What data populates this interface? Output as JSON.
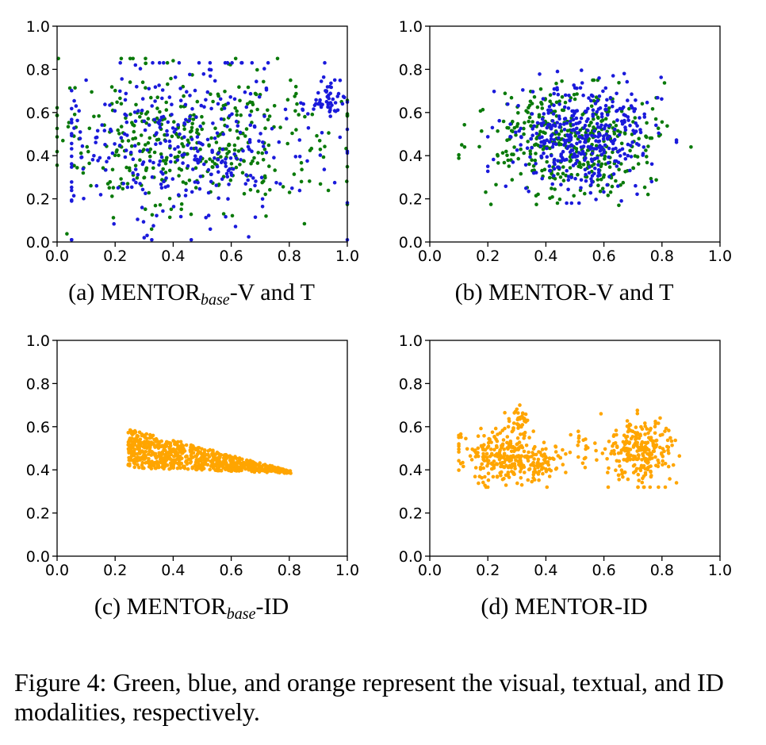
{
  "colors": {
    "visual": "#0a7a0a",
    "textual": "#1a1adb",
    "id": "#ffa500"
  },
  "chart_data": [
    {
      "type": "scatter",
      "id": "a",
      "xlim": [
        0.0,
        1.0
      ],
      "ylim": [
        0.0,
        1.0
      ],
      "xticks": [
        "0.0",
        "0.2",
        "0.4",
        "0.6",
        "0.8",
        "1.0"
      ],
      "yticks": [
        "0.0",
        "0.2",
        "0.4",
        "0.6",
        "0.8",
        "1.0"
      ],
      "caption_prefix": "(a) MENTOR",
      "caption_sub": "base",
      "caption_suffix": "-V and T",
      "series": [
        {
          "name": "visual",
          "color": "#0a7a0a",
          "n": 400,
          "seed": 11,
          "clusters": [
            {
              "cx": 0.45,
              "cy": 0.48,
              "sx": 0.25,
              "sy": 0.16,
              "w": 1
            }
          ],
          "xr": [
            0.0,
            1.0
          ],
          "yr": [
            0.02,
            0.85
          ],
          "points": [
            [
              0.02,
              0.47
            ],
            [
              0.4,
              0.84
            ],
            [
              0.38,
              0.83
            ],
            [
              0.72,
              0.12
            ],
            [
              0.98,
              0.65
            ],
            [
              0.09,
              0.32
            ]
          ]
        },
        {
          "name": "textual",
          "color": "#1a1adb",
          "n": 400,
          "seed": 23,
          "clusters": [
            {
              "cx": 0.45,
              "cy": 0.45,
              "sx": 0.25,
              "sy": 0.19,
              "w": 0.85
            },
            {
              "cx": 0.93,
              "cy": 0.64,
              "sx": 0.03,
              "sy": 0.05,
              "w": 0.15
            }
          ],
          "xr": [
            0.05,
            1.0
          ],
          "yr": [
            0.01,
            0.83
          ],
          "points": [
            [
              0.3,
              0.02
            ],
            [
              0.31,
              0.03
            ],
            [
              0.27,
              0.82
            ],
            [
              0.99,
              0.67
            ],
            [
              0.1,
              0.75
            ]
          ]
        }
      ]
    },
    {
      "type": "scatter",
      "id": "b",
      "xlim": [
        0.0,
        1.0
      ],
      "ylim": [
        0.0,
        1.0
      ],
      "xticks": [
        "0.0",
        "0.2",
        "0.4",
        "0.6",
        "0.8",
        "1.0"
      ],
      "yticks": [
        "0.0",
        "0.2",
        "0.4",
        "0.6",
        "0.8",
        "1.0"
      ],
      "caption_prefix": "(b) MENTOR-V and T",
      "caption_sub": "",
      "caption_suffix": "",
      "series": [
        {
          "name": "visual",
          "color": "#0a7a0a",
          "n": 400,
          "seed": 37,
          "clusters": [
            {
              "cx": 0.48,
              "cy": 0.46,
              "sx": 0.15,
              "sy": 0.12,
              "w": 1
            }
          ],
          "xr": [
            0.1,
            0.92
          ],
          "yr": [
            0.17,
            0.75
          ],
          "points": [
            [
              0.11,
              0.45
            ],
            [
              0.9,
              0.44
            ],
            [
              0.12,
              0.44
            ],
            [
              0.44,
              0.18
            ]
          ]
        },
        {
          "name": "textual",
          "color": "#1a1adb",
          "n": 400,
          "seed": 41,
          "clusters": [
            {
              "cx": 0.52,
              "cy": 0.48,
              "sx": 0.13,
              "sy": 0.13,
              "w": 1
            }
          ],
          "xr": [
            0.2,
            0.85
          ],
          "yr": [
            0.18,
            0.8
          ],
          "points": [
            [
              0.44,
              0.79
            ],
            [
              0.66,
              0.19
            ],
            [
              0.67,
              0.78
            ]
          ]
        }
      ]
    },
    {
      "type": "scatter",
      "id": "c",
      "xlim": [
        0.0,
        1.0
      ],
      "ylim": [
        0.0,
        1.0
      ],
      "xticks": [
        "0.0",
        "0.2",
        "0.4",
        "0.6",
        "0.8",
        "1.0"
      ],
      "yticks": [
        "0.0",
        "0.2",
        "0.4",
        "0.6",
        "0.8",
        "1.0"
      ],
      "caption_prefix": "(c) MENTOR",
      "caption_sub": "base",
      "caption_suffix": "-ID",
      "series": [
        {
          "name": "ID",
          "color": "#ffa500",
          "n": 750,
          "seed": 53,
          "shape": "wedge",
          "points": [
            [
              0.8,
              0.39
            ],
            [
              0.79,
              0.39
            ],
            [
              0.78,
              0.39
            ]
          ]
        }
      ]
    },
    {
      "type": "scatter",
      "id": "d",
      "xlim": [
        0.0,
        1.0
      ],
      "ylim": [
        0.0,
        1.0
      ],
      "xticks": [
        "0.0",
        "0.2",
        "0.4",
        "0.6",
        "0.8",
        "1.0"
      ],
      "yticks": [
        "0.0",
        "0.2",
        "0.4",
        "0.6",
        "0.8",
        "1.0"
      ],
      "caption_prefix": "(d) MENTOR-ID",
      "caption_sub": "",
      "caption_suffix": "",
      "series": [
        {
          "name": "ID",
          "color": "#ffa500",
          "n": 620,
          "seed": 67,
          "clusters": [
            {
              "cx": 0.25,
              "cy": 0.46,
              "sx": 0.07,
              "sy": 0.06,
              "w": 0.4
            },
            {
              "cx": 0.31,
              "cy": 0.62,
              "sx": 0.02,
              "sy": 0.04,
              "w": 0.06
            },
            {
              "cx": 0.4,
              "cy": 0.42,
              "sx": 0.05,
              "sy": 0.04,
              "w": 0.08
            },
            {
              "cx": 0.72,
              "cy": 0.48,
              "sx": 0.06,
              "sy": 0.07,
              "w": 0.43
            },
            {
              "cx": 0.52,
              "cy": 0.5,
              "sx": 0.02,
              "sy": 0.04,
              "w": 0.03
            }
          ],
          "xr": [
            0.1,
            0.86
          ],
          "yr": [
            0.32,
            0.71
          ],
          "points": [
            [
              0.1,
              0.52
            ],
            [
              0.31,
              0.7
            ],
            [
              0.85,
              0.34
            ],
            [
              0.59,
              0.66
            ],
            [
              0.67,
              0.56
            ]
          ]
        }
      ]
    }
  ],
  "figure_caption": "Figure 4: Green, blue, and orange represent the visual, textual, and ID modalities, respectively."
}
